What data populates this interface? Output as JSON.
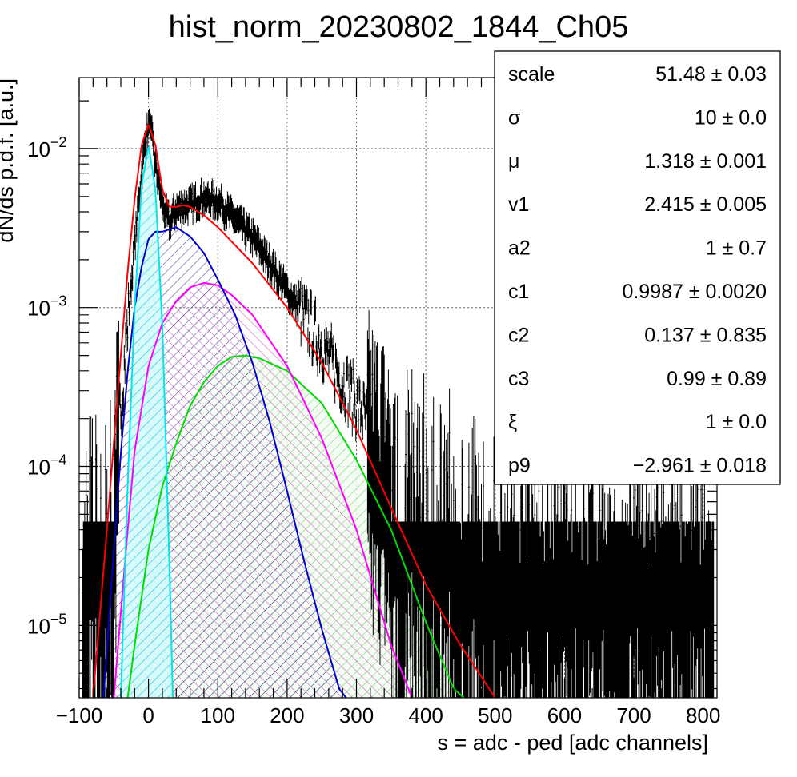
{
  "chart_data": {
    "type": "line",
    "title": "hist_norm_20230802_1844_Ch05",
    "xlabel": "s = adc - ped [adc channels]",
    "ylabel": "dN/ds p.d.f. [a.u.]",
    "xlim": [
      -100,
      820
    ],
    "ylim": [
      3.5e-06,
      0.028
    ],
    "yscale": "log",
    "grid": true,
    "x_ticks": [
      -100,
      0,
      100,
      200,
      300,
      400,
      500,
      600,
      700,
      800
    ],
    "y_ticks": [
      {
        "value": 1e-05,
        "mantissa": "10",
        "exponent": "−5"
      },
      {
        "value": 0.0001,
        "mantissa": "10",
        "exponent": "−4"
      },
      {
        "value": 0.001,
        "mantissa": "10",
        "exponent": "−3"
      },
      {
        "value": 0.01,
        "mantissa": "10",
        "exponent": "−2"
      }
    ],
    "series": [
      {
        "key": "data",
        "color": "#000000",
        "style": "histogram",
        "x": [
          -60,
          -40,
          -30,
          -20,
          -10,
          -5,
          0,
          5,
          10,
          20,
          30,
          40,
          60,
          80,
          100,
          120,
          150,
          200,
          250,
          300,
          350,
          400,
          450,
          500
        ],
        "y": [
          5e-05,
          0.00025,
          0.0008,
          0.0025,
          0.007,
          0.011,
          0.014,
          0.012,
          0.008,
          0.0045,
          0.0035,
          0.0042,
          0.0045,
          0.005,
          0.0047,
          0.0038,
          0.0028,
          0.0013,
          0.0006,
          0.00025,
          0.00012,
          8e-05,
          5e-05,
          3e-05
        ]
      },
      {
        "key": "total",
        "color": "#ff0000",
        "style": "line",
        "x": [
          -80,
          -60,
          -40,
          -30,
          -20,
          -10,
          0,
          10,
          20,
          30,
          40,
          50,
          60,
          80,
          100,
          150,
          200,
          250,
          300,
          350,
          400,
          450,
          500
        ],
        "y": [
          3.5e-06,
          4e-05,
          0.0005,
          0.0017,
          0.0048,
          0.0105,
          0.0143,
          0.0105,
          0.0055,
          0.0043,
          0.0043,
          0.0044,
          0.0043,
          0.0038,
          0.0032,
          0.0019,
          0.001,
          0.00045,
          0.00017,
          5.5e-05,
          1.8e-05,
          7.5e-06,
          3.5e-06
        ]
      },
      {
        "key": "pedestal",
        "color": "#00e5ee",
        "fill": "#a0f0f4",
        "style": "filled",
        "x": [
          -40,
          -30,
          -20,
          -10,
          0,
          10,
          20,
          30,
          35
        ],
        "y": [
          3.5e-06,
          8e-05,
          0.001,
          0.0058,
          0.0105,
          0.0055,
          0.00075,
          2.5e-05,
          3.5e-06
        ]
      },
      {
        "key": "peak1",
        "color": "#0000cc",
        "fill": "#4444aa",
        "style": "filled",
        "x": [
          -65,
          -50,
          -40,
          -30,
          -20,
          -10,
          0,
          10,
          20,
          30,
          40,
          60,
          80,
          100,
          125,
          150,
          175,
          200,
          225,
          250,
          275,
          285
        ],
        "y": [
          3.5e-06,
          3e-05,
          0.00012,
          0.0004,
          0.001,
          0.0018,
          0.0027,
          0.003,
          0.003,
          0.0031,
          0.0032,
          0.0028,
          0.0022,
          0.0015,
          0.0009,
          0.00045,
          0.00019,
          7e-05,
          2.5e-05,
          9.5e-06,
          4e-06,
          3.5e-06
        ]
      },
      {
        "key": "peak2",
        "color": "#ff00ff",
        "fill": "#e070d0",
        "style": "filled",
        "x": [
          -50,
          -40,
          -30,
          -20,
          0,
          20,
          40,
          60,
          80,
          100,
          120,
          150,
          200,
          250,
          300,
          350,
          380
        ],
        "y": [
          3.5e-06,
          1.2e-05,
          4e-05,
          0.000125,
          0.00043,
          0.0008,
          0.0011,
          0.00134,
          0.00143,
          0.00138,
          0.0012,
          0.0009,
          0.00043,
          0.00015,
          4e-05,
          7.5e-06,
          3.5e-06
        ]
      },
      {
        "key": "peak3",
        "color": "#00dd00",
        "fill": "#66dd66",
        "style": "filled",
        "x": [
          -30,
          -20,
          0,
          20,
          40,
          60,
          80,
          100,
          120,
          140,
          160,
          200,
          250,
          300,
          350,
          400,
          440,
          455
        ],
        "y": [
          3.5e-06,
          7.5e-06,
          3e-05,
          7.5e-05,
          0.00014,
          0.00024,
          0.00034,
          0.00043,
          0.00049,
          0.0005,
          0.00048,
          0.0004,
          0.00025,
          0.00011,
          4e-05,
          1.05e-05,
          4e-06,
          3.5e-06
        ]
      }
    ]
  },
  "stats_box": {
    "rows": [
      {
        "name": "scale",
        "value": "51.48",
        "pm": "±",
        "error": "0.03"
      },
      {
        "name": "σ",
        "value": "10",
        "pm": "±",
        "error": "0.0"
      },
      {
        "name": "μ",
        "value": "1.318",
        "pm": "±",
        "error": "0.001"
      },
      {
        "name": "v1",
        "value": "2.415",
        "pm": "±",
        "error": "0.005"
      },
      {
        "name": "a2",
        "value": "1",
        "pm": "±",
        "error": "0.7"
      },
      {
        "name": "c1",
        "value": "0.9987",
        "pm": "±",
        "error": "0.0020"
      },
      {
        "name": "c2",
        "value": "0.137",
        "pm": "±",
        "error": "0.835"
      },
      {
        "name": "c3",
        "value": "0.99",
        "pm": "±",
        "error": "0.89"
      },
      {
        "name": "ξ",
        "value": "1",
        "pm": "±",
        "error": "0.0"
      },
      {
        "name": "p9",
        "value": "−2.961",
        "pm": "±",
        "error": "0.018"
      }
    ]
  }
}
